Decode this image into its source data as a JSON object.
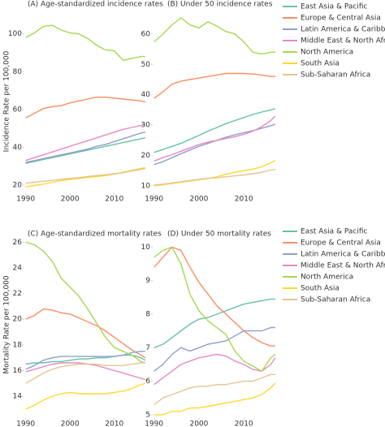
{
  "y_axis_titles": [
    "Incidence Rate per 100,000",
    "Mortality Rate per 100,000"
  ],
  "chart_data": [
    {
      "type": "line",
      "title": "(A) Age-standardized incidence rates",
      "x": [
        1990,
        1992,
        1994,
        1996,
        1998,
        2000,
        2002,
        2004,
        2006,
        2008,
        2010,
        2012,
        2014,
        2016,
        2017
      ],
      "xlim": [
        1989.7,
        2017.2
      ],
      "xticks": [
        1990,
        2000,
        2010
      ],
      "ylim": [
        15.7,
        113.6
      ],
      "yticks": [
        20,
        40,
        60,
        80,
        100
      ],
      "series": [
        {
          "color": "#66c2a5",
          "values": [
            31.5,
            32.5,
            33.5,
            34.5,
            35.5,
            36.5,
            37.5,
            38.5,
            39.5,
            40.5,
            41.5,
            42.5,
            43.5,
            44.5,
            45
          ]
        },
        {
          "color": "#fc8d62",
          "values": [
            55.5,
            58,
            60.5,
            61.5,
            62,
            63.5,
            64.5,
            65.5,
            66.5,
            66.5,
            66,
            65.5,
            65,
            64.5,
            64
          ]
        },
        {
          "color": "#8da0cb",
          "values": [
            32,
            33,
            34,
            35,
            36,
            37,
            38,
            39,
            40.5,
            41.5,
            43,
            44.5,
            46,
            47.5,
            48
          ]
        },
        {
          "color": "#e78ac3",
          "values": [
            33,
            34.5,
            36,
            37.5,
            39,
            40.5,
            42,
            43.5,
            45,
            46.5,
            48,
            49.5,
            50.5,
            51.5,
            52
          ]
        },
        {
          "color": "#a6d854",
          "values": [
            98,
            100.5,
            104,
            104.5,
            102,
            100.5,
            100,
            97.5,
            94,
            91.5,
            91,
            86,
            87,
            88,
            88
          ]
        },
        {
          "color": "#ffd92f",
          "values": [
            19,
            19.8,
            20.5,
            21.5,
            22.3,
            23,
            23.5,
            24,
            24.5,
            25,
            25.8,
            26.8,
            27.8,
            28.8,
            29.2
          ]
        },
        {
          "color": "#e5c494",
          "values": [
            21,
            21.5,
            22,
            22.5,
            23,
            23.5,
            24,
            24.5,
            25,
            25.5,
            26,
            26.5,
            27.5,
            28.3,
            28.7
          ]
        }
      ]
    },
    {
      "type": "line",
      "title": "(B) Under 50 incidence rates",
      "x": [
        1990,
        1992,
        1994,
        1996,
        1998,
        2000,
        2002,
        2004,
        2006,
        2008,
        2010,
        2012,
        2014,
        2016,
        2017
      ],
      "xlim": [
        1989.7,
        2017.2
      ],
      "xticks": [
        1990,
        2000,
        2010
      ],
      "ylim": [
        7.6,
        68.5
      ],
      "yticks": [
        10,
        20,
        30,
        40,
        50,
        60
      ],
      "series": [
        {
          "name": "East Asia & Pacific",
          "color": "#66c2a5",
          "values": [
            21,
            22,
            23,
            24,
            25.3,
            26.6,
            28,
            29.2,
            30.5,
            31.5,
            32.5,
            33.5,
            34.3,
            35,
            35.4
          ]
        },
        {
          "name": "Europe & Central Asia",
          "color": "#fc8d62",
          "values": [
            38.8,
            41,
            43.5,
            44.5,
            45,
            45.5,
            46,
            46.5,
            47,
            47,
            47,
            46.8,
            46.5,
            46,
            46
          ]
        },
        {
          "name": "Latin America & Caribbean",
          "color": "#8da0cb",
          "values": [
            17,
            18,
            19.3,
            20.6,
            21.8,
            23,
            24,
            25,
            26,
            26.8,
            27.5,
            28.2,
            29,
            29.8,
            30.3
          ]
        },
        {
          "name": "Middle East & North Africa",
          "color": "#e78ac3",
          "values": [
            18.2,
            19.3,
            20.3,
            21.4,
            22.5,
            23.6,
            24.4,
            25,
            25.6,
            26.2,
            27,
            28,
            29.5,
            31.5,
            33
          ]
        },
        {
          "name": "North America",
          "color": "#a6d854",
          "values": [
            57.4,
            60,
            63,
            65.3,
            63,
            62,
            64,
            62.6,
            60.8,
            60,
            57.4,
            54,
            53.4,
            54,
            54
          ]
        },
        {
          "name": "South Asia",
          "color": "#ffd92f",
          "values": [
            10,
            10.4,
            10.8,
            11.2,
            11.6,
            12,
            12.4,
            13,
            13.8,
            14.5,
            15,
            15.5,
            16.3,
            17.6,
            18.4
          ]
        },
        {
          "name": "Sub-Saharan Africa",
          "color": "#e5c494",
          "values": [
            10.3,
            10.6,
            11,
            11.4,
            11.8,
            12.2,
            12.5,
            12.7,
            13,
            13.3,
            13.6,
            14,
            14.5,
            15.2,
            15.5
          ]
        }
      ]
    },
    {
      "type": "line",
      "title": "(C) Age-standardized mortality rates",
      "x": [
        1990,
        1992,
        1994,
        1996,
        1998,
        2000,
        2002,
        2004,
        2006,
        2008,
        2010,
        2012,
        2014,
        2016,
        2017
      ],
      "xlim": [
        1989.7,
        2017.2
      ],
      "xticks": [
        1990,
        2000,
        2010
      ],
      "ylim": [
        12.3,
        26.4
      ],
      "yticks": [
        14,
        16,
        18,
        20,
        22,
        24,
        26
      ],
      "series": [
        {
          "color": "#66c2a5",
          "values": [
            16.5,
            16.6,
            16.6,
            16.7,
            16.7,
            16.8,
            16.9,
            16.9,
            17,
            17,
            17.1,
            17.2,
            17.2,
            17,
            16.8
          ]
        },
        {
          "color": "#fc8d62",
          "values": [
            20,
            20.3,
            20.8,
            20.7,
            20.5,
            20.4,
            20.1,
            19.8,
            19.5,
            19.1,
            18.6,
            18.1,
            17.6,
            17.2,
            17
          ]
        },
        {
          "color": "#8da0cb",
          "values": [
            16.1,
            16.4,
            16.8,
            17,
            17.1,
            17.1,
            17.1,
            17.1,
            17.1,
            17.1,
            17.1,
            17.2,
            17.4,
            17.5,
            17.5
          ]
        },
        {
          "color": "#e78ac3",
          "values": [
            15.9,
            16.1,
            16.3,
            16.5,
            16.6,
            16.6,
            16.6,
            16.5,
            16.4,
            16.2,
            16,
            15.8,
            15.6,
            15.4,
            15.3
          ]
        },
        {
          "color": "#a6d854",
          "values": [
            26,
            25.8,
            25.3,
            24.5,
            23.2,
            22.5,
            21.8,
            20.8,
            19.7,
            18.6,
            17.8,
            17.5,
            17.2,
            16.7,
            16.6
          ]
        },
        {
          "color": "#ffd92f",
          "values": [
            13,
            13.3,
            13.7,
            14,
            14.2,
            14.3,
            14.2,
            14.2,
            14.2,
            14.2,
            14.3,
            14.4,
            14.6,
            14.9,
            15
          ]
        },
        {
          "color": "#e5c494",
          "values": [
            15,
            15.4,
            15.8,
            16.1,
            16.3,
            16.4,
            16.5,
            16.5,
            16.5,
            16.4,
            16.4,
            16.4,
            16.5,
            16.6,
            16.6
          ]
        }
      ]
    },
    {
      "type": "line",
      "title": "(D) Under 50 mortality rates",
      "x": [
        1990,
        1992,
        1994,
        1996,
        1998,
        2000,
        2002,
        2004,
        2006,
        2008,
        2010,
        2012,
        2014,
        2016,
        2017
      ],
      "xlim": [
        1989.7,
        2017.2
      ],
      "xticks": [
        1990,
        2000,
        2010
      ],
      "ylim": [
        4.9,
        10.3
      ],
      "yticks": [
        5,
        6,
        7,
        8,
        9,
        10
      ],
      "series": [
        {
          "name": "East Asia & Pacific",
          "color": "#66c2a5",
          "values": [
            7.0,
            7.1,
            7.3,
            7.5,
            7.7,
            7.85,
            7.9,
            8.0,
            8.1,
            8.2,
            8.3,
            8.35,
            8.4,
            8.45,
            8.45
          ]
        },
        {
          "name": "Europe & Central Asia",
          "color": "#fc8d62",
          "values": [
            9.4,
            9.7,
            10.0,
            9.9,
            9.4,
            8.95,
            8.6,
            8.25,
            8.0,
            7.75,
            7.5,
            7.3,
            7.15,
            7.05,
            7.05
          ]
        },
        {
          "name": "Latin America & Caribbean",
          "color": "#8da0cb",
          "values": [
            6.3,
            6.5,
            6.8,
            7.0,
            6.9,
            7.0,
            7.1,
            7.15,
            7.2,
            7.35,
            7.5,
            7.5,
            7.5,
            7.6,
            7.6
          ]
        },
        {
          "name": "Middle East & North Africa",
          "color": "#e78ac3",
          "values": [
            5.9,
            6.1,
            6.3,
            6.5,
            6.6,
            6.7,
            6.75,
            6.8,
            6.75,
            6.6,
            6.5,
            6.35,
            6.3,
            6.5,
            6.7
          ]
        },
        {
          "name": "North America",
          "color": "#a6d854",
          "values": [
            9.7,
            9.9,
            10.0,
            9.5,
            8.6,
            8.1,
            7.8,
            7.6,
            7.4,
            6.9,
            6.6,
            6.45,
            6.3,
            6.7,
            6.8
          ]
        },
        {
          "name": "South Asia",
          "color": "#ffd92f",
          "values": [
            5.0,
            5.0,
            5.1,
            5.1,
            5.2,
            5.2,
            5.25,
            5.3,
            5.35,
            5.4,
            5.45,
            5.5,
            5.6,
            5.8,
            5.95
          ]
        },
        {
          "name": "Sub-Saharan Africa",
          "color": "#e5c494",
          "values": [
            5.3,
            5.5,
            5.6,
            5.7,
            5.8,
            5.85,
            5.85,
            5.9,
            5.9,
            5.95,
            6.0,
            6.0,
            6.1,
            6.2,
            6.2
          ]
        }
      ]
    }
  ]
}
